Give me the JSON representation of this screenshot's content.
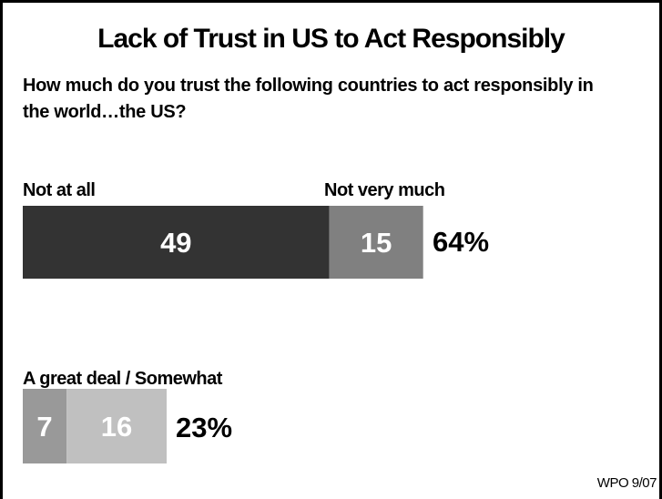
{
  "title": "Lack of Trust in US to Act Responsibly",
  "subtitle": "How much do you trust the following countries to act responsibly in the world…the US?",
  "source": "WPO 9/07",
  "colors": {
    "not_at_all": "#333333",
    "not_very_much": "#808080",
    "great_deal": "#999999",
    "somewhat": "#c0c0c0",
    "bar_text": "#ffffff"
  },
  "chart_data": {
    "type": "bar",
    "orientation": "horizontal-stacked",
    "groups": [
      {
        "labels": [
          "Not at all",
          "Not very much"
        ],
        "segments": [
          {
            "value": 49
          },
          {
            "value": 15
          }
        ],
        "total_label": "64%"
      },
      {
        "label": "A great deal / Somewhat",
        "segments": [
          {
            "value": 7
          },
          {
            "value": 16
          }
        ],
        "total_label": "23%"
      }
    ]
  }
}
